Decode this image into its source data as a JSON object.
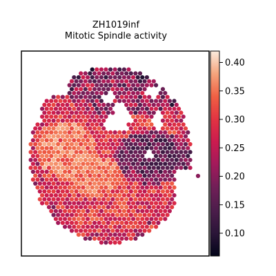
{
  "chart_data": {
    "type": "heatmap",
    "title": "ZH1019inf",
    "subtitle": "Mitotic Spindle activity",
    "xlabel": "",
    "ylabel": "",
    "colormap": "rocket",
    "colorbar": {
      "range": [
        0.06,
        0.42
      ],
      "ticks": [
        0.1,
        0.15,
        0.2,
        0.25,
        0.3,
        0.35,
        0.4
      ],
      "tick_labels": [
        "0.10",
        "0.15",
        "0.20",
        "0.25",
        "0.30",
        "0.35",
        "0.40"
      ],
      "placement": "right"
    },
    "grid": false,
    "description_regions": [
      {
        "region": "upper-left lobe",
        "value": 0.33
      },
      {
        "region": "center",
        "value": 0.31
      },
      {
        "region": "lower band",
        "value": 0.27
      },
      {
        "region": "right dark cluster",
        "value": 0.12
      },
      {
        "region": "top rim",
        "value": 0.21
      },
      {
        "region": "edges",
        "value": 0.22
      }
    ]
  },
  "colors": {
    "cmap_stops": [
      "#03051a",
      "#2b1538",
      "#4c1d4b",
      "#701f57",
      "#a11a5b",
      "#cb1b4f",
      "#e13342",
      "#f06043",
      "#f6a47c",
      "#faebdd"
    ]
  }
}
